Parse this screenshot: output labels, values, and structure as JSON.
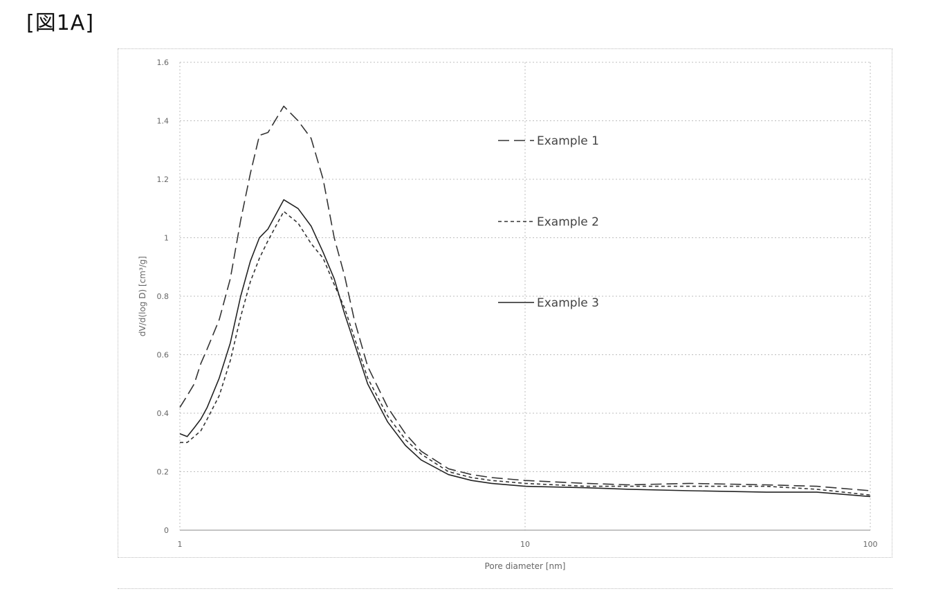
{
  "figure_label": "[図1A]",
  "chart_data": {
    "type": "line",
    "title": "",
    "xlabel": "Pore diameter [nm]",
    "ylabel": "dV/d(log D) [cm³/g]",
    "x_scale": "log",
    "xlim": [
      1,
      100
    ],
    "ylim": [
      0,
      1.6
    ],
    "x_ticks": [
      "1",
      "10",
      "100"
    ],
    "y_ticks": [
      "0",
      "0.2",
      "0.4",
      "0.6",
      "0.8",
      "1",
      "1.2",
      "1.4",
      "1.6"
    ],
    "grid": "dotted",
    "legend_position": "right",
    "series": [
      {
        "name": "Example 1",
        "style": "long-dash",
        "color": "#333333",
        "x": [
          1.0,
          1.05,
          1.1,
          1.15,
          1.2,
          1.3,
          1.4,
          1.5,
          1.6,
          1.7,
          1.8,
          2.0,
          2.2,
          2.4,
          2.6,
          2.8,
          3.0,
          3.2,
          3.5,
          4.0,
          4.5,
          5.0,
          6.0,
          7.0,
          8.0,
          10,
          15,
          20,
          30,
          50,
          70,
          100
        ],
        "y": [
          0.42,
          0.46,
          0.5,
          0.57,
          0.62,
          0.72,
          0.86,
          1.06,
          1.22,
          1.35,
          1.36,
          1.45,
          1.4,
          1.34,
          1.2,
          1.0,
          0.87,
          0.72,
          0.56,
          0.42,
          0.33,
          0.27,
          0.21,
          0.19,
          0.18,
          0.17,
          0.16,
          0.155,
          0.16,
          0.155,
          0.15,
          0.135
        ]
      },
      {
        "name": "Example 2",
        "style": "short-dash",
        "color": "#333333",
        "x": [
          1.0,
          1.05,
          1.1,
          1.15,
          1.2,
          1.3,
          1.4,
          1.5,
          1.6,
          1.7,
          1.8,
          2.0,
          2.2,
          2.4,
          2.6,
          2.8,
          3.0,
          3.2,
          3.5,
          4.0,
          4.5,
          5.0,
          6.0,
          7.0,
          8.0,
          10,
          15,
          20,
          30,
          50,
          70,
          100
        ],
        "y": [
          0.3,
          0.3,
          0.32,
          0.34,
          0.38,
          0.46,
          0.58,
          0.73,
          0.85,
          0.93,
          0.99,
          1.09,
          1.05,
          0.98,
          0.93,
          0.84,
          0.76,
          0.66,
          0.52,
          0.39,
          0.31,
          0.26,
          0.2,
          0.18,
          0.17,
          0.16,
          0.15,
          0.15,
          0.15,
          0.15,
          0.14,
          0.12
        ]
      },
      {
        "name": "Example 3",
        "style": "solid",
        "color": "#222222",
        "x": [
          1.0,
          1.05,
          1.1,
          1.15,
          1.2,
          1.3,
          1.4,
          1.5,
          1.6,
          1.7,
          1.8,
          2.0,
          2.2,
          2.4,
          2.6,
          2.8,
          3.0,
          3.2,
          3.5,
          4.0,
          4.5,
          5.0,
          6.0,
          7.0,
          8.0,
          10,
          15,
          20,
          30,
          50,
          70,
          100
        ],
        "y": [
          0.33,
          0.32,
          0.35,
          0.38,
          0.42,
          0.52,
          0.64,
          0.8,
          0.92,
          1.0,
          1.03,
          1.13,
          1.1,
          1.04,
          0.95,
          0.86,
          0.74,
          0.64,
          0.5,
          0.37,
          0.29,
          0.24,
          0.19,
          0.17,
          0.16,
          0.15,
          0.145,
          0.14,
          0.135,
          0.13,
          0.13,
          0.115
        ]
      }
    ]
  }
}
